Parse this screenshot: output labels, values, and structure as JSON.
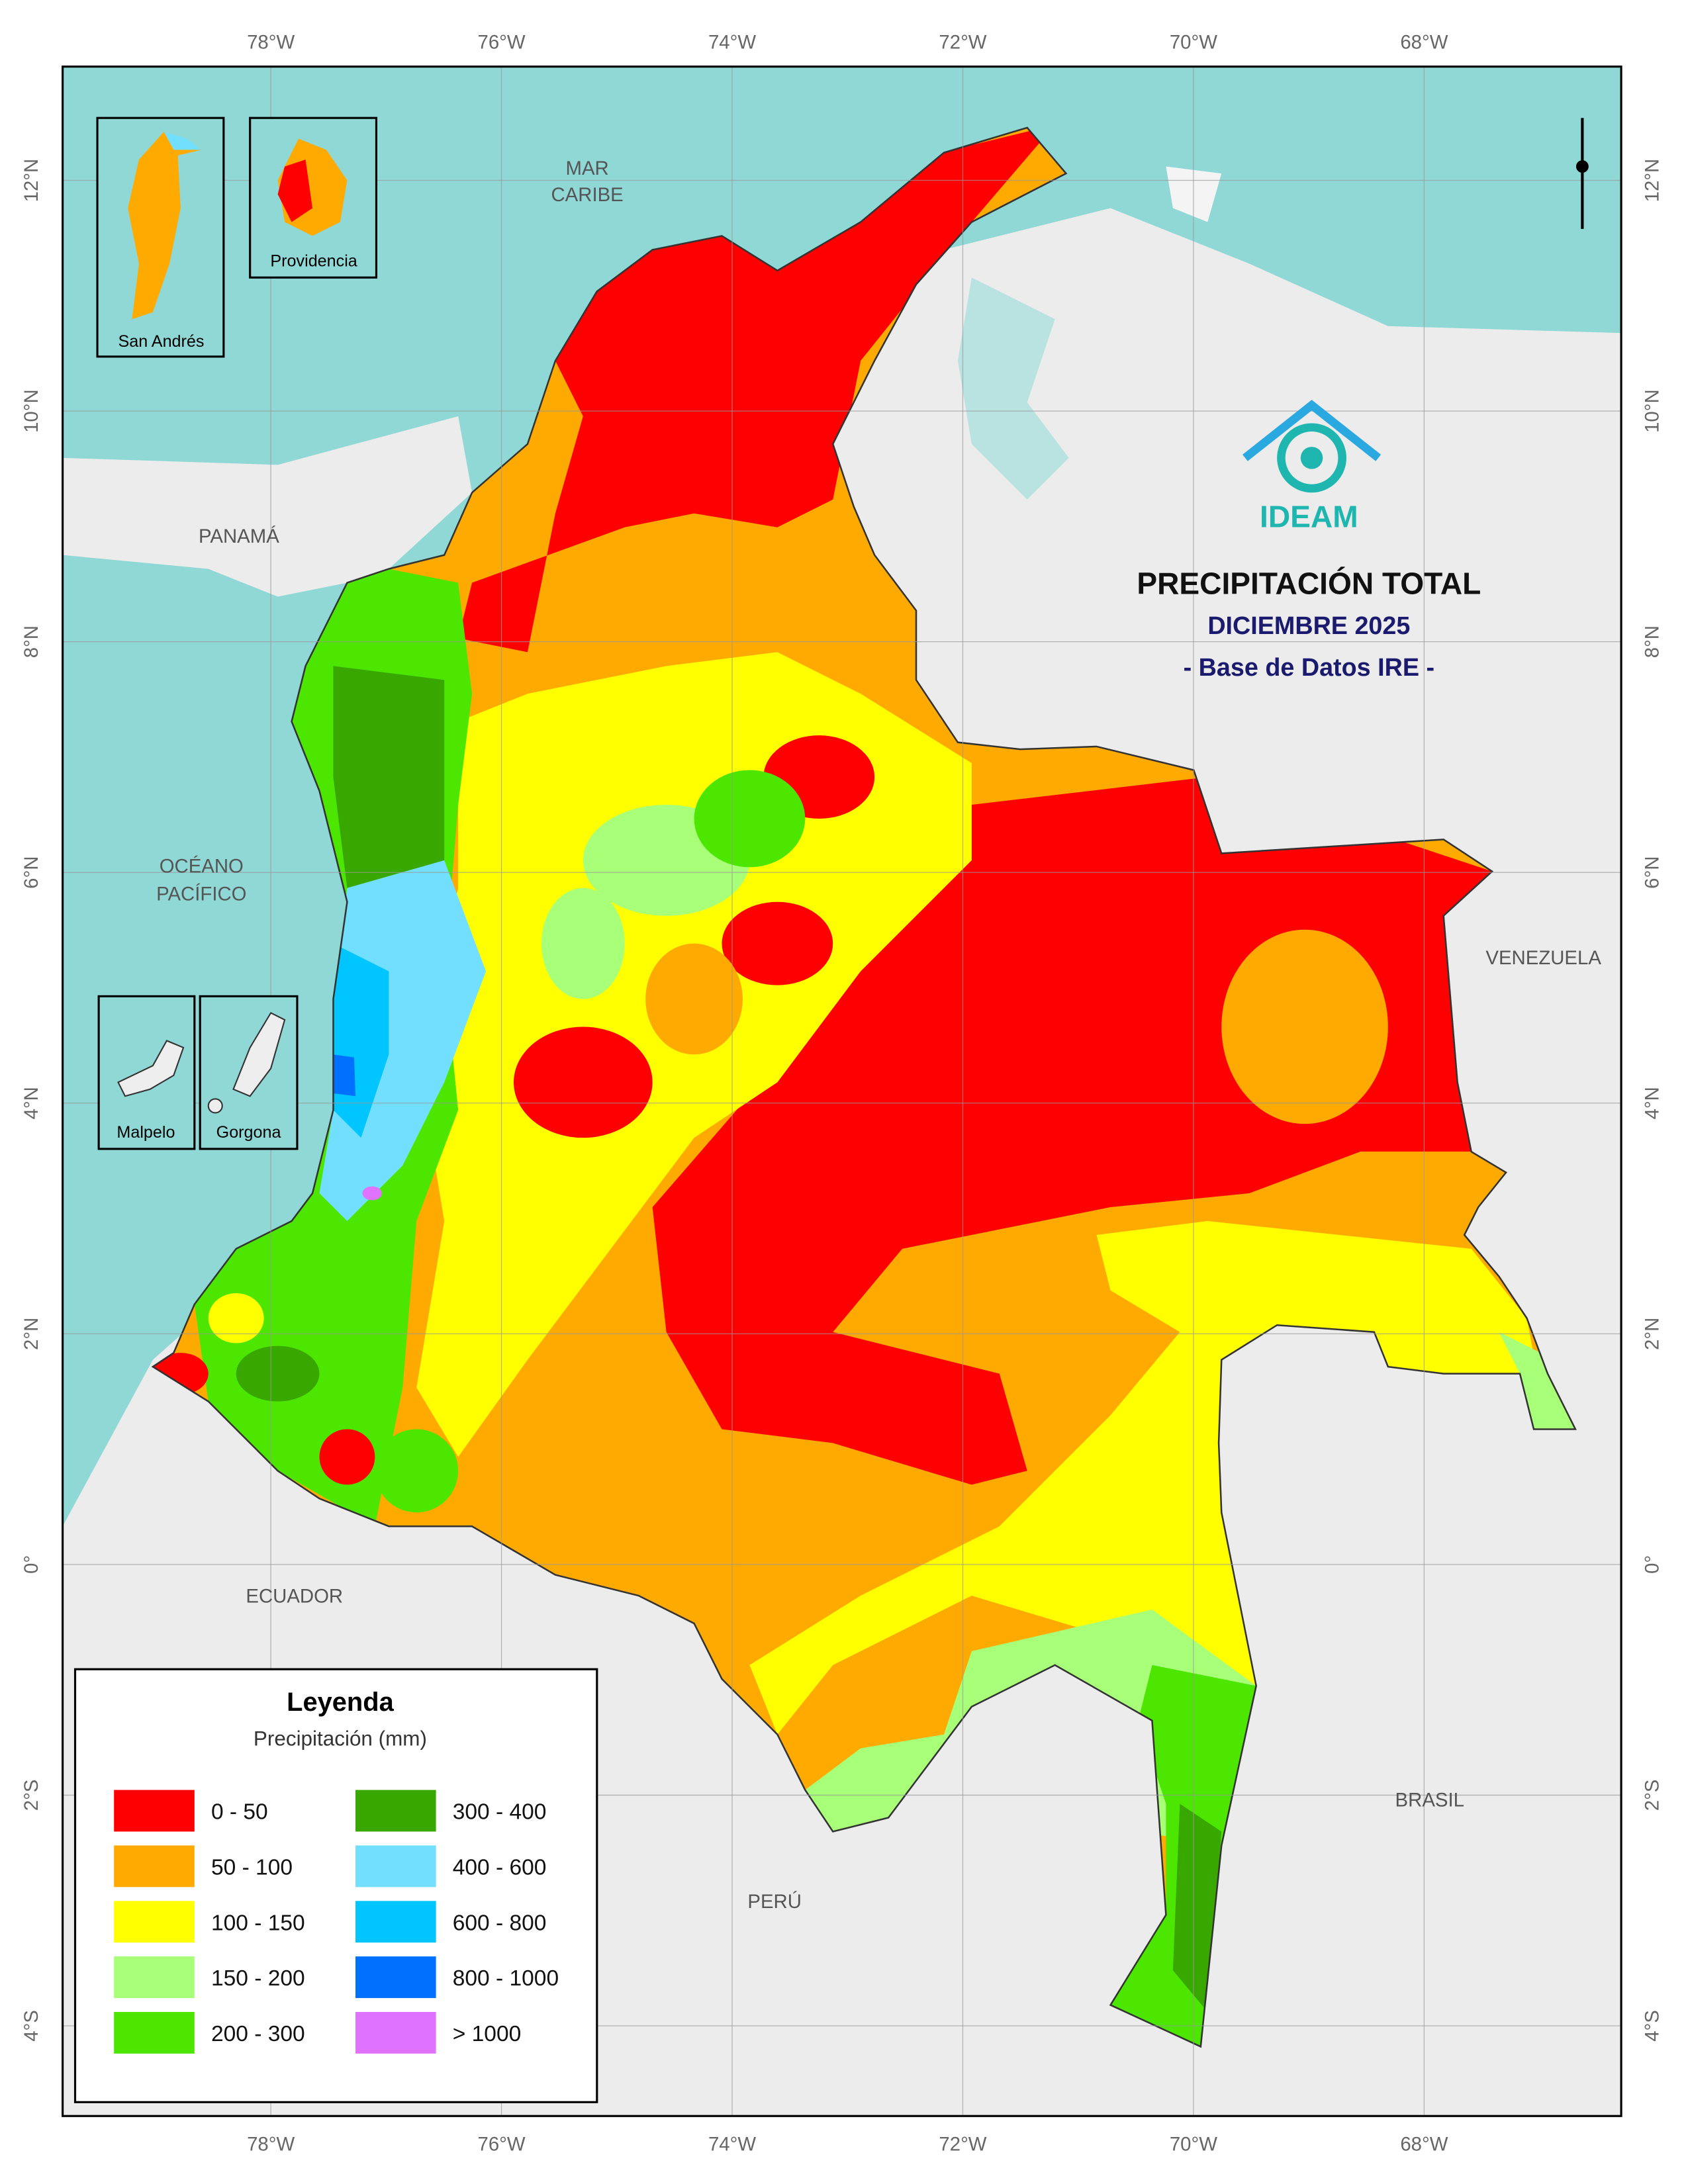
{
  "header": {
    "logo": "IDEAM",
    "title": "PRECIPITACIÓN TOTAL",
    "subtitle": "DICIEMBRE 2025",
    "source": "- Base de Datos IRE -"
  },
  "graticule": {
    "longitudes": [
      "78°W",
      "76°W",
      "74°W",
      "72°W",
      "70°W",
      "68°W"
    ],
    "latitudes": [
      "12°N",
      "10°N",
      "8°N",
      "6°N",
      "4°N",
      "2°N",
      "0°",
      "2°S",
      "4°S"
    ]
  },
  "places": [
    {
      "lines": [
        "MAR",
        "CARIBE"
      ]
    },
    {
      "lines": [
        "PANAMÁ"
      ]
    },
    {
      "lines": [
        "OCÉANO",
        "PACÍFICO"
      ]
    },
    {
      "lines": [
        "VENEZUELA"
      ]
    },
    {
      "lines": [
        "ECUADOR"
      ]
    },
    {
      "lines": [
        "BRASIL"
      ]
    },
    {
      "lines": [
        "PERÚ"
      ]
    }
  ],
  "insets": [
    "San Andrés",
    "Providencia",
    "Malpelo",
    "Gorgona"
  ],
  "legend": {
    "title": "Leyenda",
    "subtitle": "Precipitación (mm)",
    "items": [
      {
        "label": "0 - 50",
        "color": "#ff0000"
      },
      {
        "label": "50 - 100",
        "color": "#ffaa00"
      },
      {
        "label": "100 - 150",
        "color": "#ffff00"
      },
      {
        "label": "150 - 200",
        "color": "#a8ff78"
      },
      {
        "label": "200 - 300",
        "color": "#4ce600"
      },
      {
        "label": "300 - 400",
        "color": "#38a800"
      },
      {
        "label": "400 - 600",
        "color": "#73dfff"
      },
      {
        "label": "600 - 800",
        "color": "#00c5ff"
      },
      {
        "label": "800 - 1000",
        "color": "#0070ff"
      },
      {
        "label": "> 1000",
        "color": "#df73ff"
      }
    ]
  }
}
